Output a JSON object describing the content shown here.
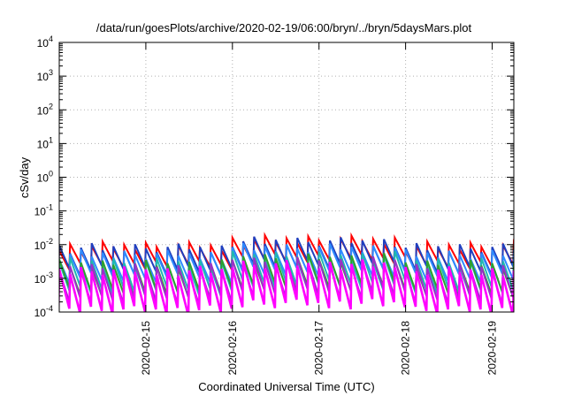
{
  "chart_data": {
    "type": "line",
    "title": "/data/run/goesPlots/archive/2020-02-19/06:00/bryn/../bryn/5daysMars.plot",
    "xlabel": "Coordinated Universal Time (UTC)",
    "ylabel": "cSv/day",
    "x_tick_labels": [
      "2020-02-15",
      "2020-02-16",
      "2020-02-17",
      "2020-02-18",
      "2020-02-19"
    ],
    "y_tick_labels": [
      {
        "base": "10",
        "exp": "-4"
      },
      {
        "base": "10",
        "exp": "-3"
      },
      {
        "base": "10",
        "exp": "-2"
      },
      {
        "base": "10",
        "exp": "-1"
      },
      {
        "base": "10",
        "exp": "0"
      },
      {
        "base": "10",
        "exp": "1"
      },
      {
        "base": "10",
        "exp": "2"
      },
      {
        "base": "10",
        "exp": "3"
      },
      {
        "base": "10",
        "exp": "4"
      }
    ],
    "y_scale": "log",
    "ylim": [
      0.0001,
      10000
    ],
    "xlim": [
      "2020-02-14T00:00",
      "2020-02-19T06:00"
    ],
    "grid": true,
    "legend": "none",
    "sawtooth_period_hours": 3,
    "series": [
      {
        "color": "#ff0000",
        "peak": 0.0095,
        "trough": 0.0026
      },
      {
        "color": "#1f3fbf",
        "peak": 0.0085,
        "trough": 0.0018
      },
      {
        "color": "#2e8bff",
        "peak": 0.0055,
        "trough": 0.0011
      },
      {
        "color": "#20b8b0",
        "peak": 0.0032,
        "trough": 0.00045
      },
      {
        "color": "#2ea02e",
        "peak": 0.0028,
        "trough": 0.0004
      },
      {
        "color": "#9a30c8",
        "peak": 0.0022,
        "trough": 0.00025
      },
      {
        "color": "#ff00ff",
        "peak": 0.0018,
        "trough": 0.00012
      }
    ]
  }
}
